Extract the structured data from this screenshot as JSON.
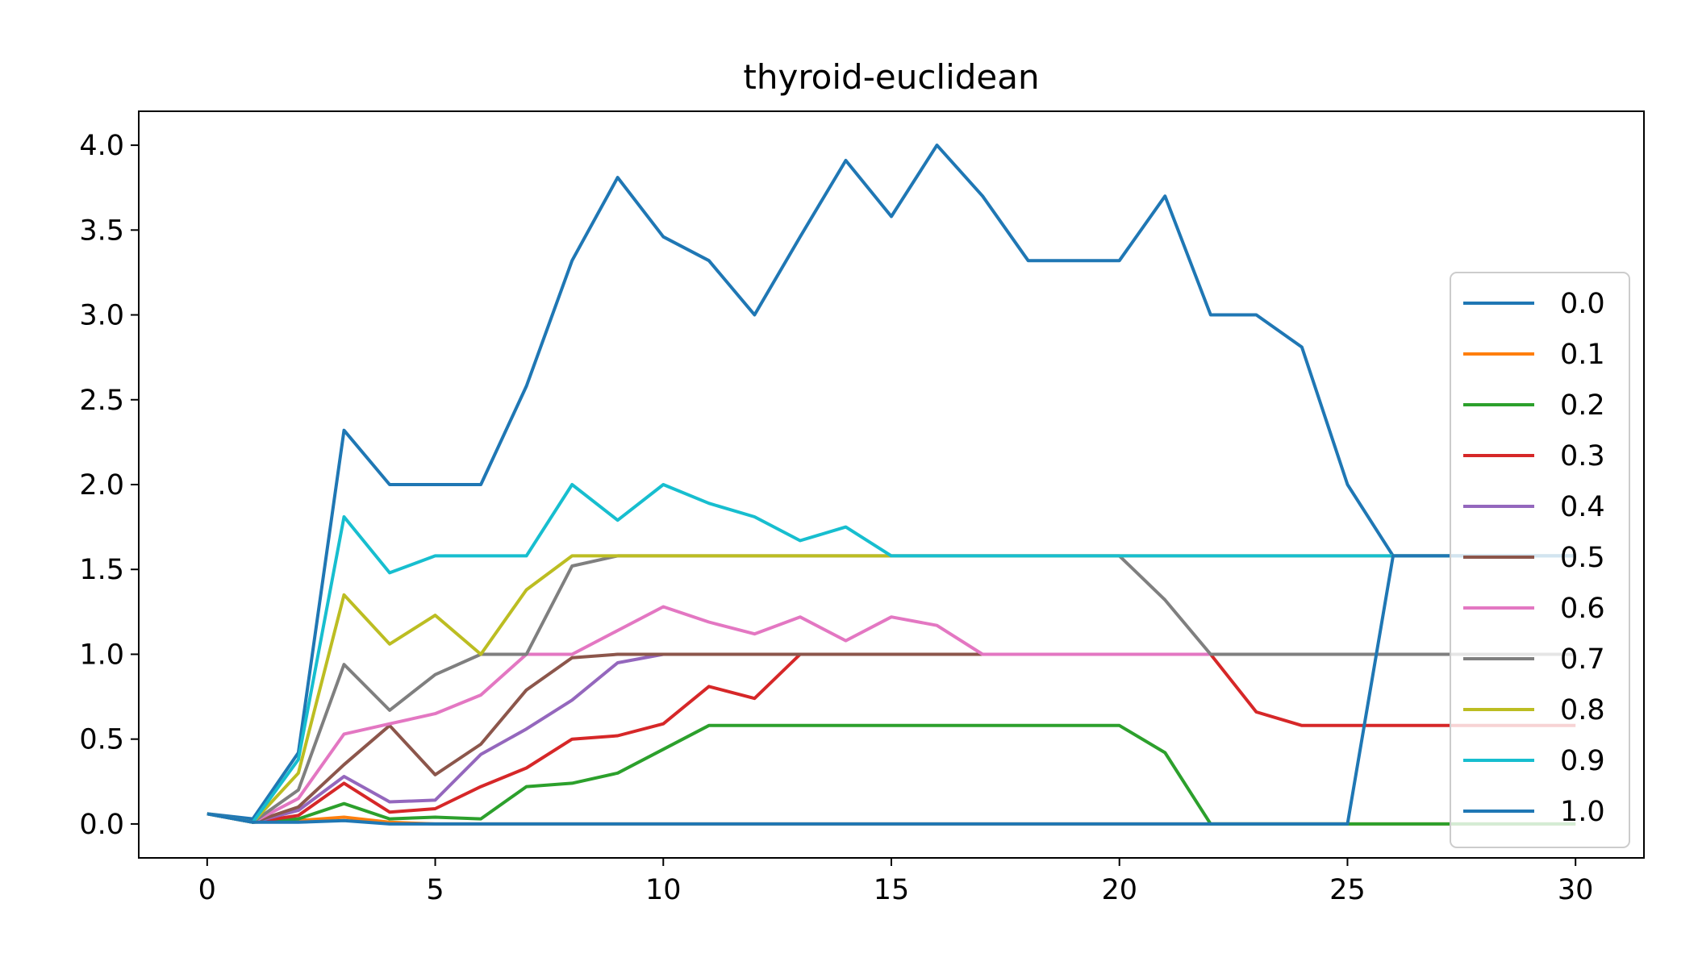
{
  "chart_data": {
    "type": "line",
    "title": "thyroid-euclidean",
    "xlabel": "",
    "ylabel": "",
    "xlim": [
      -1.5,
      31.5
    ],
    "ylim": [
      -0.2,
      4.2
    ],
    "xticks": [
      0,
      5,
      10,
      15,
      20,
      25,
      30
    ],
    "yticks": [
      0.0,
      0.5,
      1.0,
      1.5,
      2.0,
      2.5,
      3.0,
      3.5,
      4.0
    ],
    "xtick_labels": [
      "0",
      "5",
      "10",
      "15",
      "20",
      "25",
      "30"
    ],
    "ytick_labels": [
      "0.0",
      "0.5",
      "1.0",
      "1.5",
      "2.0",
      "2.5",
      "3.0",
      "3.5",
      "4.0"
    ],
    "grid": false,
    "legend_position": "right",
    "x": [
      0,
      1,
      2,
      3,
      4,
      5,
      6,
      7,
      8,
      9,
      10,
      11,
      12,
      13,
      14,
      15,
      16,
      17,
      18,
      19,
      20,
      21,
      22,
      23,
      24,
      25,
      26,
      27,
      28,
      29,
      30
    ],
    "series": [
      {
        "name": "0.0",
        "color": "#1f77b4",
        "values": [
          0.06,
          0.03,
          0.42,
          2.32,
          2.0,
          2.0,
          2.0,
          2.58,
          3.32,
          3.81,
          3.46,
          3.32,
          3.0,
          3.46,
          3.91,
          3.58,
          4.0,
          3.7,
          3.32,
          3.32,
          3.32,
          3.7,
          3.0,
          3.0,
          2.81,
          2.0,
          1.58,
          1.58,
          1.58,
          1.58,
          1.58
        ]
      },
      {
        "name": "0.1",
        "color": "#ff7f0e",
        "values": [
          0.06,
          0.01,
          0.02,
          0.04,
          0.01,
          0.0,
          0.0,
          0.0,
          0.0,
          0.0,
          0.0,
          0.0,
          0.0,
          0.0,
          0.0,
          0.0,
          0.0,
          0.0,
          0.0,
          0.0,
          0.0,
          0.0,
          0.0,
          0.0,
          0.0,
          0.0,
          0.0,
          0.0,
          0.0,
          0.0,
          0.0
        ]
      },
      {
        "name": "0.2",
        "color": "#2ca02c",
        "values": [
          0.06,
          0.01,
          0.03,
          0.12,
          0.03,
          0.04,
          0.03,
          0.22,
          0.24,
          0.3,
          0.44,
          0.58,
          0.58,
          0.58,
          0.58,
          0.58,
          0.58,
          0.58,
          0.58,
          0.58,
          0.58,
          0.42,
          0.0,
          0.0,
          0.0,
          0.0,
          0.0,
          0.0,
          0.0,
          0.0,
          0.0
        ]
      },
      {
        "name": "0.3",
        "color": "#d62728",
        "values": [
          0.06,
          0.01,
          0.05,
          0.24,
          0.07,
          0.09,
          0.22,
          0.33,
          0.5,
          0.52,
          0.59,
          0.81,
          0.74,
          1.0,
          1.0,
          1.0,
          1.0,
          1.0,
          1.0,
          1.0,
          1.0,
          1.0,
          1.0,
          0.66,
          0.58,
          0.58,
          0.58,
          0.58,
          0.58,
          0.58,
          0.58
        ]
      },
      {
        "name": "0.4",
        "color": "#9467bd",
        "values": [
          0.06,
          0.01,
          0.08,
          0.28,
          0.13,
          0.14,
          0.41,
          0.56,
          0.73,
          0.95,
          1.0,
          1.0,
          1.0,
          1.0,
          1.0,
          1.0,
          1.0,
          1.0,
          1.0,
          1.0,
          1.0,
          1.0,
          1.0,
          1.0,
          1.0,
          1.0,
          1.0,
          1.0,
          1.0,
          1.0,
          1.0
        ]
      },
      {
        "name": "0.5",
        "color": "#8c564b",
        "values": [
          0.06,
          0.01,
          0.1,
          0.35,
          0.58,
          0.29,
          0.47,
          0.79,
          0.98,
          1.0,
          1.0,
          1.0,
          1.0,
          1.0,
          1.0,
          1.0,
          1.0,
          1.0,
          1.0,
          1.0,
          1.0,
          1.0,
          1.0,
          1.0,
          1.0,
          1.0,
          1.0,
          1.0,
          1.0,
          1.0,
          1.0
        ]
      },
      {
        "name": "0.6",
        "color": "#e377c2",
        "values": [
          0.06,
          0.01,
          0.15,
          0.53,
          0.59,
          0.65,
          0.76,
          1.0,
          1.0,
          1.14,
          1.28,
          1.19,
          1.12,
          1.22,
          1.08,
          1.22,
          1.17,
          1.0,
          1.0,
          1.0,
          1.0,
          1.0,
          1.0,
          1.0,
          1.0,
          1.0,
          1.0,
          1.0,
          1.0,
          1.0,
          1.0
        ]
      },
      {
        "name": "0.7",
        "color": "#7f7f7f",
        "values": [
          0.06,
          0.01,
          0.2,
          0.94,
          0.67,
          0.88,
          1.0,
          1.0,
          1.52,
          1.58,
          1.58,
          1.58,
          1.58,
          1.58,
          1.58,
          1.58,
          1.58,
          1.58,
          1.58,
          1.58,
          1.58,
          1.32,
          1.0,
          1.0,
          1.0,
          1.0,
          1.0,
          1.0,
          1.0,
          1.0,
          1.0
        ]
      },
      {
        "name": "0.8",
        "color": "#bcbd22",
        "values": [
          0.06,
          0.01,
          0.3,
          1.35,
          1.06,
          1.23,
          1.0,
          1.38,
          1.58,
          1.58,
          1.58,
          1.58,
          1.58,
          1.58,
          1.58,
          1.58,
          1.58,
          1.58,
          1.58,
          1.58,
          1.58,
          1.58,
          1.58,
          1.58,
          1.58,
          1.58,
          1.58,
          1.58,
          1.58,
          1.58,
          1.58
        ]
      },
      {
        "name": "0.9",
        "color": "#17becf",
        "values": [
          0.06,
          0.01,
          0.38,
          1.81,
          1.48,
          1.58,
          1.58,
          1.58,
          2.0,
          1.79,
          2.0,
          1.89,
          1.81,
          1.67,
          1.75,
          1.58,
          1.58,
          1.58,
          1.58,
          1.58,
          1.58,
          1.58,
          1.58,
          1.58,
          1.58,
          1.58,
          1.58,
          1.58,
          1.58,
          1.58,
          1.58
        ]
      },
      {
        "name": "1.0",
        "color": "#1f77b4",
        "values": [
          0.06,
          0.01,
          0.01,
          0.02,
          0.0,
          0.0,
          0.0,
          0.0,
          0.0,
          0.0,
          0.0,
          0.0,
          0.0,
          0.0,
          0.0,
          0.0,
          0.0,
          0.0,
          0.0,
          0.0,
          0.0,
          0.0,
          0.0,
          0.0,
          0.0,
          0.0,
          1.58,
          1.58,
          1.58,
          1.58,
          1.58
        ]
      }
    ]
  }
}
